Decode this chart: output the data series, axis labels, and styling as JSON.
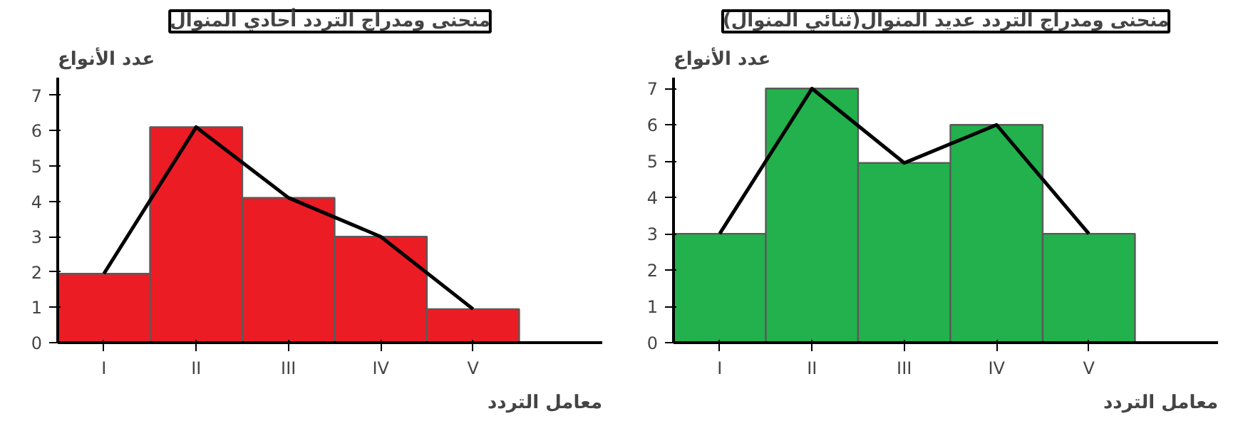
{
  "chart_data": [
    {
      "type": "bar",
      "title": "منحنى ومدراج التردد أحادي المنوال",
      "ylabel": "عدد الأنواع",
      "xlabel": "معامل التردد",
      "categories": [
        "I",
        "II",
        "III",
        "IV",
        "V"
      ],
      "ylim": [
        0,
        7.5
      ],
      "yticks": [
        0,
        1,
        2,
        3,
        4,
        5,
        6,
        7
      ],
      "grid": false,
      "series": [
        {
          "color": "#ec1c24",
          "values": [
            1.95,
            6.1,
            4.1,
            3.0,
            0.95
          ]
        },
        {
          "type": "line",
          "color": "#000000",
          "values": [
            1.95,
            6.1,
            4.1,
            3.0,
            0.95
          ]
        }
      ]
    },
    {
      "type": "bar",
      "title": "منحنى ومدراج التردد عديد المنوال(ثنائي المنوال)",
      "ylabel": "عدد الأنواع",
      "xlabel": "معامل التردد",
      "categories": [
        "I",
        "II",
        "III",
        "IV",
        "V"
      ],
      "ylim": [
        0,
        7.3
      ],
      "yticks": [
        0,
        1,
        2,
        3,
        4,
        5,
        6,
        7
      ],
      "grid": false,
      "series": [
        {
          "color": "#22b14c",
          "values": [
            3,
            7,
            4.95,
            6,
            3
          ]
        },
        {
          "type": "line",
          "color": "#000000",
          "values": [
            3,
            7,
            4.95,
            6,
            3
          ]
        }
      ]
    }
  ]
}
